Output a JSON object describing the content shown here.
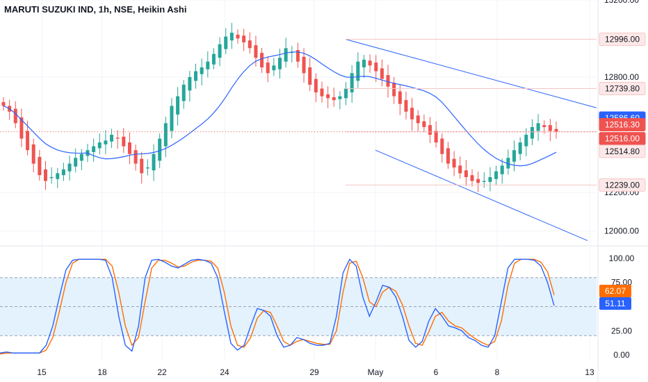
{
  "title": "MARUTI SUZUKI IND, 1h, NSE, Heikin Ashi",
  "colors": {
    "up": "#26a69a",
    "down": "#ef5350",
    "ma": "#2962ff",
    "stoch_k": "#2962ff",
    "stoch_d": "#ff6d00",
    "band_fill": "#e3f2fd",
    "grid": "#f0f3fa",
    "axis_text": "#131722",
    "level_line": "#f7c5c5"
  },
  "chart_data": [
    {
      "type": "candlestick",
      "name": "Heikin Ashi price",
      "ylim": [
        11930,
        13200
      ],
      "y_ticks": [
        "13200.00",
        "12800.00",
        "12200.00",
        "12000.00"
      ],
      "y_tick_values": [
        13200,
        12800,
        12200,
        12000
      ],
      "x_ticks": [
        "15",
        "18",
        "22",
        "24",
        "29",
        "May",
        "6",
        "8",
        "13"
      ],
      "level_labels": [
        {
          "value": 12996,
          "text": "12996.00",
          "style": "outline"
        },
        {
          "value": 12739.8,
          "text": "12739.80",
          "style": "outline"
        },
        {
          "value": 12586.6,
          "text": "12586.60",
          "style": "blue"
        },
        {
          "value": 12516.3,
          "text": "12516.30",
          "style": "red"
        },
        {
          "value": 12516,
          "text": "12516.00",
          "style": "red"
        },
        {
          "value": 12514.8,
          "text": "12514.80",
          "style": "outline"
        },
        {
          "value": 12239,
          "text": "12239.00",
          "style": "outline"
        }
      ],
      "close_series": [
        12650,
        12620,
        12560,
        12480,
        12420,
        12350,
        12290,
        12260,
        12280,
        12300,
        12320,
        12350,
        12380,
        12400,
        12420,
        12440,
        12460,
        12470,
        12500,
        12480,
        12440,
        12400,
        12350,
        12300,
        12330,
        12400,
        12480,
        12560,
        12650,
        12700,
        12760,
        12800,
        12830,
        12850,
        12880,
        12920,
        12970,
        13010,
        13030,
        13000,
        12980,
        12950,
        12900,
        12850,
        12820,
        12860,
        12900,
        12950,
        12930,
        12880,
        12820,
        12760,
        12720,
        12700,
        12690,
        12680,
        12700,
        12740,
        12820,
        12880,
        12890,
        12860,
        12830,
        12790,
        12750,
        12700,
        12660,
        12620,
        12580,
        12560,
        12540,
        12500,
        12460,
        12400,
        12350,
        12330,
        12300,
        12280,
        12260,
        12250,
        12260,
        12280,
        12310,
        12340,
        12380,
        12420,
        12460,
        12500,
        12540,
        12560,
        12540,
        12520,
        12516
      ]
    },
    {
      "type": "line",
      "name": "Stochastic",
      "ylim": [
        -5,
        110
      ],
      "y_ticks": [
        "100.00",
        "75.00",
        "25.00",
        "0.00"
      ],
      "y_tick_values": [
        100,
        75,
        25,
        0
      ],
      "band": [
        20,
        80
      ],
      "current_labels": [
        {
          "value": 62.07,
          "text": "62.07",
          "style": "orange"
        },
        {
          "value": 51.11,
          "text": "51.11",
          "style": "blue"
        }
      ],
      "k_series": [
        2,
        3,
        2,
        2,
        2,
        2,
        2,
        10,
        30,
        60,
        88,
        98,
        99,
        99,
        99,
        99,
        98,
        80,
        40,
        10,
        4,
        30,
        80,
        98,
        99,
        96,
        92,
        90,
        94,
        98,
        99,
        98,
        95,
        80,
        45,
        12,
        5,
        10,
        30,
        48,
        46,
        40,
        20,
        8,
        10,
        18,
        16,
        12,
        10,
        10,
        12,
        40,
        85,
        99,
        92,
        60,
        40,
        55,
        72,
        70,
        60,
        40,
        15,
        8,
        14,
        35,
        48,
        40,
        30,
        28,
        25,
        18,
        15,
        10,
        8,
        20,
        55,
        90,
        99,
        99,
        99,
        98,
        92,
        75,
        51
      ],
      "d_series": [
        1,
        2,
        2,
        2,
        2,
        2,
        2,
        5,
        18,
        45,
        75,
        95,
        99,
        99,
        99,
        99,
        99,
        92,
        65,
        30,
        10,
        18,
        55,
        90,
        98,
        98,
        95,
        91,
        92,
        96,
        98,
        98,
        97,
        90,
        65,
        30,
        10,
        8,
        18,
        38,
        46,
        44,
        30,
        14,
        10,
        14,
        16,
        14,
        12,
        11,
        11,
        25,
        65,
        95,
        97,
        80,
        55,
        50,
        65,
        70,
        66,
        52,
        30,
        12,
        10,
        24,
        40,
        44,
        35,
        30,
        28,
        22,
        17,
        13,
        10,
        14,
        35,
        72,
        95,
        99,
        99,
        99,
        96,
        86,
        62
      ]
    }
  ]
}
